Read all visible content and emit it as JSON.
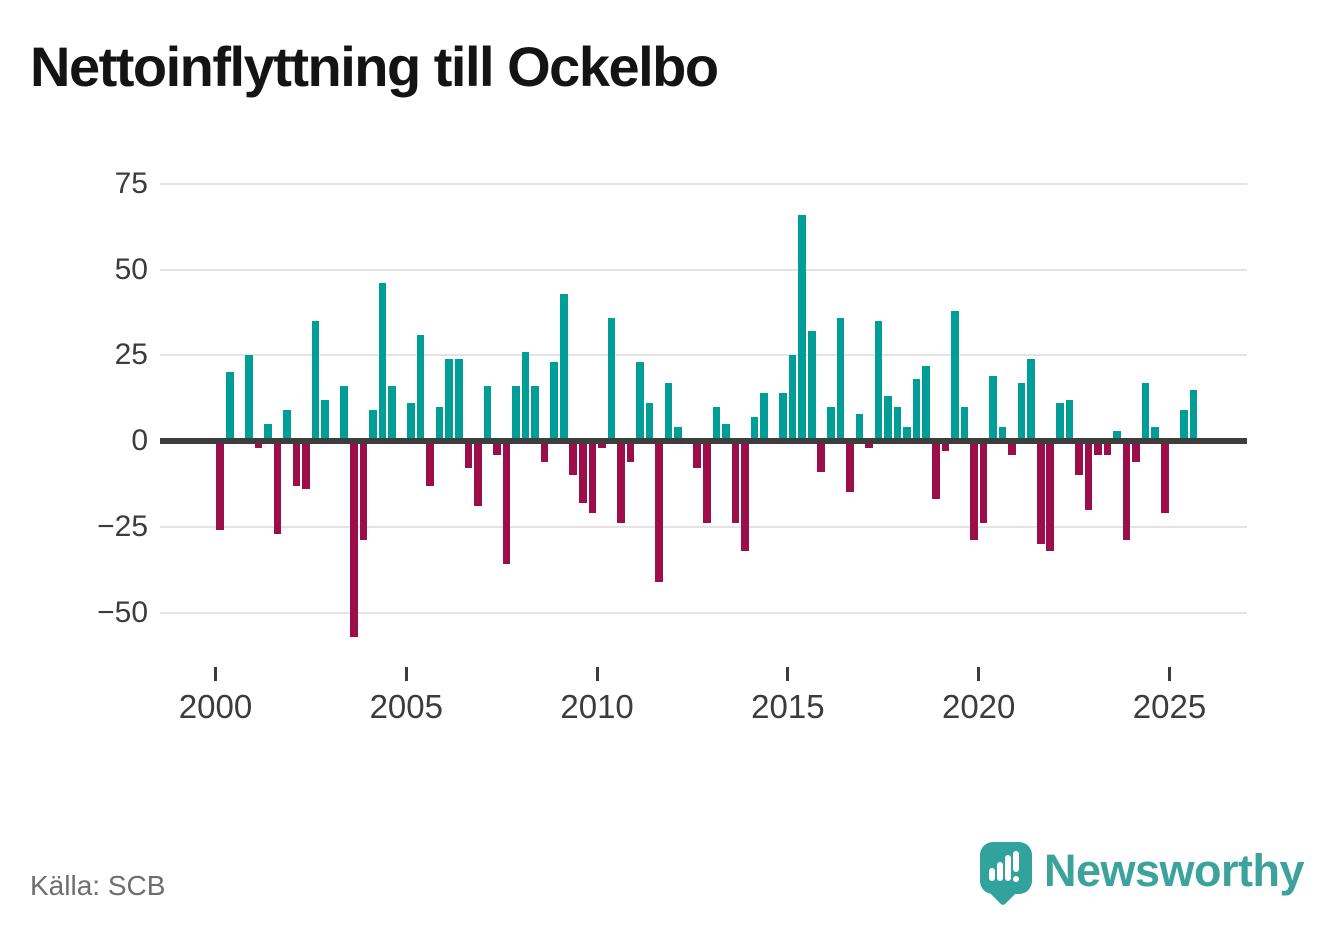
{
  "title": "Nettoinflyttning till Ockelbo",
  "source": "Källa: SCB",
  "logo": {
    "text": "Newsworthy"
  },
  "colors": {
    "positive": "#009e97",
    "negative": "#9b0e49",
    "grid": "#e4e4e4",
    "zero_line": "#3d3d3d",
    "title_text": "#141414",
    "axis_text": "#3c3c3c",
    "source_text": "#6e6e6e",
    "logo_teal": "#31a29c"
  },
  "chart_data": {
    "type": "bar",
    "title": "Nettoinflyttning till Ockelbo",
    "frequency": "quarterly",
    "x_start": "2000 Q1",
    "x_end": "2025 Q3",
    "values": [
      -26,
      20,
      1,
      25,
      -2,
      5,
      -27,
      9,
      -13,
      -14,
      35,
      12,
      1,
      16,
      -57,
      -29,
      9,
      46,
      16,
      1,
      11,
      31,
      -13,
      10,
      24,
      24,
      -8,
      -19,
      16,
      -4,
      -36,
      16,
      26,
      16,
      -6,
      23,
      43,
      -10,
      -18,
      -21,
      -2,
      36,
      -24,
      -6,
      23,
      11,
      -41,
      17,
      4,
      0,
      -8,
      -24,
      10,
      5,
      -24,
      -32,
      7,
      14,
      1,
      14,
      25,
      66,
      32,
      -9,
      10,
      36,
      -15,
      8,
      -2,
      35,
      13,
      10,
      4,
      18,
      22,
      -17,
      -3,
      38,
      10,
      -29,
      -24,
      19,
      4,
      -4,
      17,
      24,
      -30,
      -32,
      11,
      12,
      -10,
      -20,
      -4,
      -4,
      3,
      -29,
      -6,
      17,
      4,
      -21,
      0,
      9,
      15
    ],
    "xticks": [
      2000,
      2005,
      2010,
      2015,
      2020,
      2025
    ],
    "xtick_labels": [
      "2000",
      "2005",
      "2010",
      "2015",
      "2020",
      "2025"
    ],
    "yticks": [
      75,
      50,
      25,
      0,
      -25,
      -50
    ],
    "ytick_labels": [
      "75",
      "50",
      "25",
      "0",
      "−25",
      "−50"
    ],
    "ylim": [
      -60,
      80
    ],
    "grid": true,
    "legend": "none",
    "positive_color": "#009e97",
    "negative_color": "#9b0e49"
  }
}
